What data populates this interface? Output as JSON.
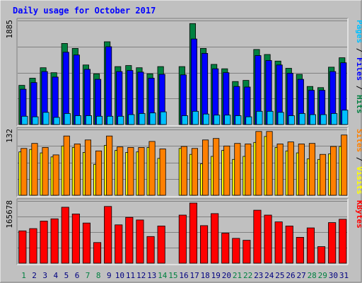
{
  "chart_data": {
    "type": "bar",
    "title": "Daily usage for October 2017",
    "days": [
      "1",
      "2",
      "3",
      "4",
      "5",
      "6",
      "7",
      "8",
      "9",
      "10",
      "11",
      "12",
      "13",
      "14",
      "15",
      "16",
      "17",
      "18",
      "19",
      "20",
      "21",
      "22",
      "23",
      "24",
      "25",
      "26",
      "27",
      "28",
      "29",
      "30",
      "31"
    ],
    "weekend_days": [
      "1",
      "7",
      "8",
      "14",
      "15",
      "21",
      "22",
      "28",
      "29"
    ],
    "panels": [
      {
        "id": "requests",
        "ymax_label": "1885",
        "ymax": 1885,
        "right_label": [
          {
            "text": "Pages",
            "color": "#00C0FF"
          },
          {
            "text": " / ",
            "color": "#000000"
          },
          {
            "text": "Files",
            "color": "#0000FF"
          },
          {
            "text": " / ",
            "color": "#000000"
          },
          {
            "text": "Hits",
            "color": "#008040"
          }
        ],
        "series": [
          {
            "name": "Hits",
            "color": "#008040",
            "values": [
              710,
              840,
              1030,
              940,
              1470,
              1380,
              1080,
              920,
              1500,
              1050,
              1070,
              1030,
              920,
              1050,
              0,
              1050,
              1830,
              1380,
              1090,
              1010,
              780,
              800,
              1360,
              1270,
              1150,
              1020,
              910,
              690,
              670,
              1040,
              1210
            ]
          },
          {
            "name": "Files",
            "color": "#0000FF",
            "values": [
              640,
              760,
              960,
              860,
              1310,
              1260,
              1000,
              820,
              1410,
              960,
              980,
              950,
              840,
              910,
              0,
              900,
              1550,
              1290,
              1010,
              940,
              690,
              680,
              1250,
              1160,
              1080,
              930,
              820,
              620,
              620,
              960,
              1120
            ]
          },
          {
            "name": "Pages",
            "color": "#00C0FF",
            "values": [
              150,
              140,
              220,
              130,
              200,
              160,
              160,
              150,
              150,
              150,
              180,
              200,
              210,
              230,
              0,
              160,
              240,
              190,
              170,
              170,
              160,
              140,
              240,
              240,
              220,
              160,
              200,
              180,
              180,
              200,
              260
            ]
          }
        ]
      },
      {
        "id": "visits",
        "ymax_label": "132",
        "ymax": 132,
        "right_label": [
          {
            "text": "Sites",
            "color": "#FF8000"
          },
          {
            "text": " / ",
            "color": "#000000"
          },
          {
            "text": "Visits",
            "color": "#FFFF00"
          }
        ],
        "series": [
          {
            "name": "Visits",
            "color": "#FFFF00",
            "values": [
              87,
              92,
              85,
              77,
              99,
              96,
              86,
              62,
              100,
              90,
              86,
              87,
              96,
              74,
              0,
              94,
              82,
              63,
              78,
              90,
              72,
              78,
              106,
              118,
              96,
              89,
              85,
              73,
              72,
              83,
              98
            ]
          },
          {
            "name": "Sites",
            "color": "#FF8000",
            "values": [
              94,
              104,
              96,
              81,
              119,
              103,
              111,
              89,
              119,
              97,
              96,
              96,
              108,
              93,
              0,
              98,
              94,
              111,
              114,
              99,
              104,
              103,
              128,
              128,
              103,
              107,
              103,
              104,
              82,
              98,
              121
            ]
          }
        ]
      },
      {
        "id": "kbytes",
        "ymax_label": "165678",
        "ymax": 165678,
        "right_label": [
          {
            "text": "KBytes",
            "color": "#FF0000"
          }
        ],
        "series": [
          {
            "name": "KBytes",
            "color": "#FF0000",
            "values": [
              86000,
              92000,
              112000,
              118000,
              149000,
              131000,
              107000,
              55000,
              151000,
              102000,
              122000,
              115000,
              71000,
              99000,
              0,
              128000,
              160000,
              100000,
              132000,
              80000,
              66000,
              61000,
              141000,
              128000,
              110000,
              99000,
              69000,
              94000,
              44000,
              108000,
              117000
            ]
          }
        ]
      }
    ],
    "colors": {
      "background": "#C0C0C0",
      "grid": "#808080",
      "title": "#0000FF",
      "weekday_label": "#000080",
      "weekend_label": "#008040"
    }
  }
}
